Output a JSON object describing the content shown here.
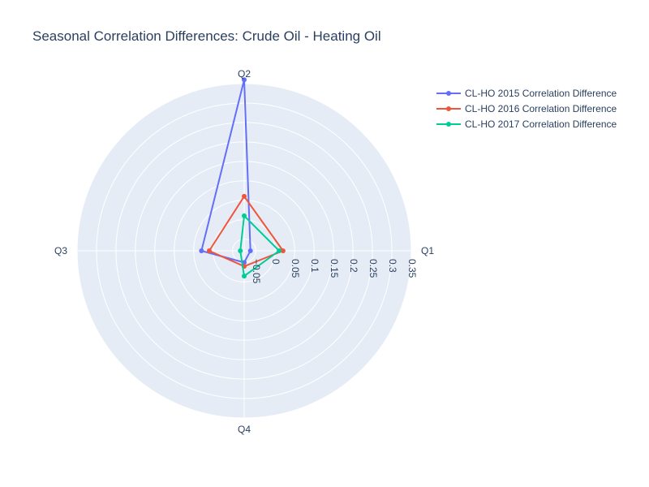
{
  "chart_data": {
    "type": "polar-line",
    "title": "Seasonal Correlation Differences: Crude Oil - Heating Oil",
    "theta_categories": [
      "Q1",
      "Q2",
      "Q3",
      "Q4"
    ],
    "radial_range": [
      -0.08,
      0.35
    ],
    "radial_ticks": [
      "−0.05",
      "0",
      "0.05",
      "0.1",
      "0.15",
      "0.2",
      "0.25",
      "0.3",
      "0.35"
    ],
    "radial_tick_values": [
      -0.05,
      0,
      0.05,
      0.1,
      0.15,
      0.2,
      0.25,
      0.3,
      0.35
    ],
    "legend_position": "top-right",
    "series": [
      {
        "name": "CL-HO 2015 Correlation Difference",
        "color": "#636efa",
        "values": [
          -0.064,
          0.36,
          0.03,
          -0.05
        ]
      },
      {
        "name": "CL-HO 2016 Correlation Difference",
        "color": "#ef553b",
        "values": [
          0.02,
          0.06,
          0.01,
          -0.04
        ]
      },
      {
        "name": "CL-HO 2017 Correlation Difference",
        "color": "#00cc96",
        "values": [
          0.01,
          0.01,
          -0.07,
          -0.015
        ]
      }
    ]
  }
}
